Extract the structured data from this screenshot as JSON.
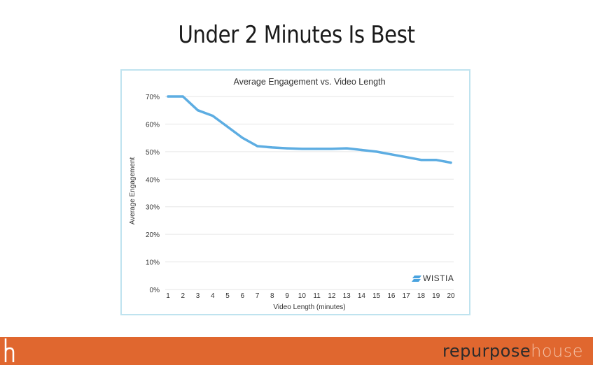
{
  "slide": {
    "title": "Under 2 Minutes Is Best"
  },
  "chart_data": {
    "type": "line",
    "title": "Average Engagement vs. Video Length",
    "xlabel": "Video Length (minutes)",
    "ylabel": "Average Engagement",
    "x": [
      1,
      2,
      3,
      4,
      5,
      6,
      7,
      8,
      9,
      10,
      11,
      12,
      13,
      14,
      15,
      16,
      17,
      18,
      19,
      20
    ],
    "series": [
      {
        "values": [
          70,
          70,
          65,
          63,
          59,
          55,
          52,
          51.5,
          51.2,
          51,
          51,
          51,
          51.2,
          50.6,
          50,
          49,
          48,
          47,
          47,
          46
        ],
        "color": "#5dade2"
      }
    ],
    "yticks": [
      "0%",
      "10%",
      "20%",
      "30%",
      "40%",
      "50%",
      "60%",
      "70%"
    ],
    "ylim": [
      0,
      70
    ],
    "grid": true,
    "legend": "none",
    "watermark": "WISTIA"
  },
  "footer": {
    "brand_strong": "repurpose",
    "brand_light": "house",
    "bg_color": "#e0672f"
  }
}
